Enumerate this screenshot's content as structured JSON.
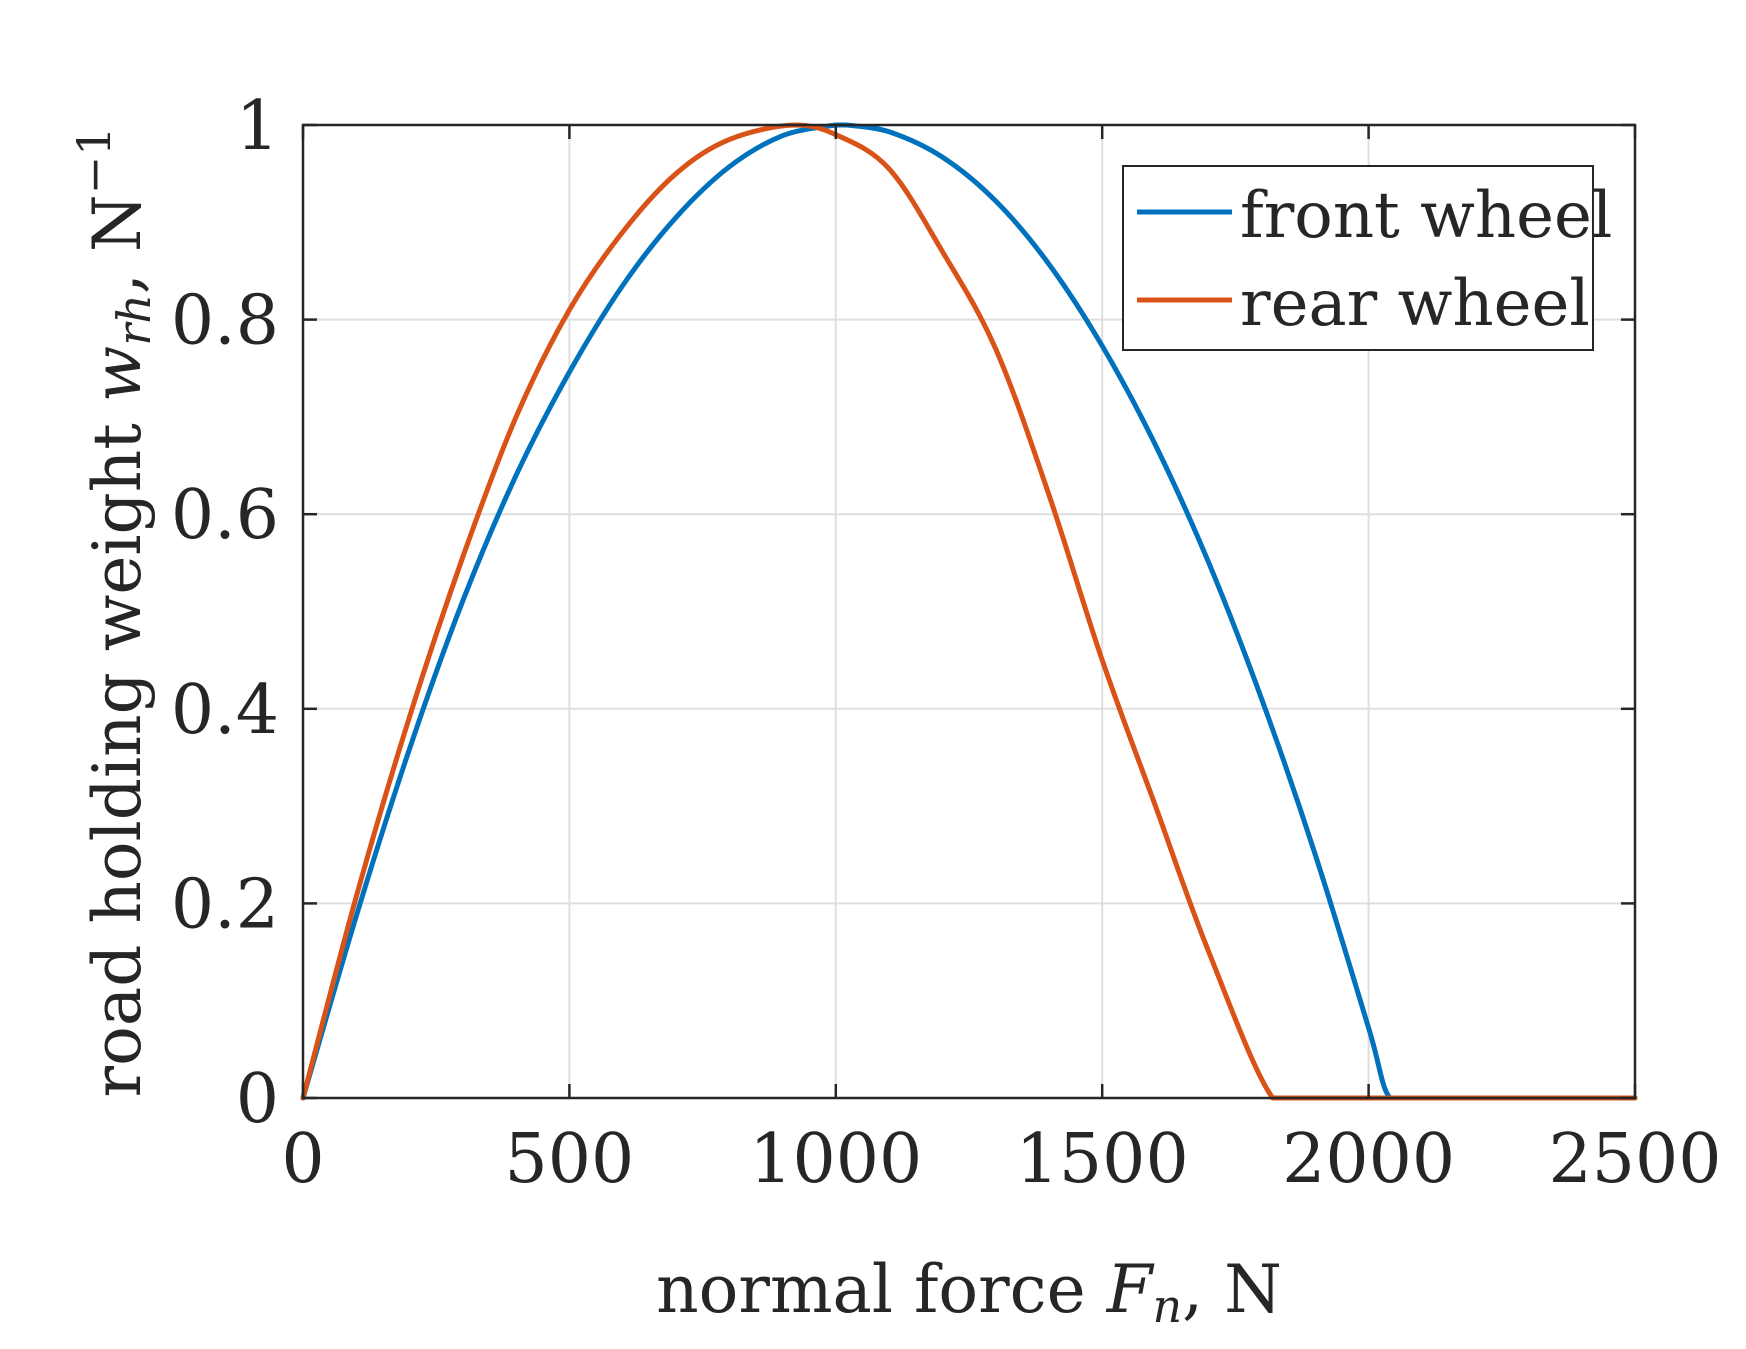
{
  "chart_data": {
    "type": "line",
    "xlabel_main": "normal force ",
    "xlabel_var": "F",
    "xlabel_sub": "n",
    "xlabel_unit": ", N",
    "ylabel_main": "road holding weight ",
    "ylabel_var": "w",
    "ylabel_sub": "rh",
    "ylabel_unit": ", N",
    "ylabel_sup": "−1",
    "xlim": [
      0,
      2500
    ],
    "ylim": [
      0,
      1
    ],
    "xticks": [
      0,
      500,
      1000,
      1500,
      2000,
      2500
    ],
    "xtick_labels": [
      "0",
      "500",
      "1000",
      "1500",
      "2000",
      "2500"
    ],
    "yticks": [
      0,
      0.2,
      0.4,
      0.6,
      0.8,
      1
    ],
    "ytick_labels": [
      "0",
      "0.2",
      "0.4",
      "0.6",
      "0.8",
      "1"
    ],
    "grid": true,
    "legend_position": "top-right",
    "series": [
      {
        "name": "front wheel",
        "color": "#0072BD",
        "x": [
          0,
          100,
          200,
          300,
          400,
          500,
          600,
          700,
          800,
          900,
          1000,
          1020,
          1100,
          1200,
          1300,
          1400,
          1500,
          1600,
          1700,
          1800,
          1900,
          2000,
          2040,
          2100,
          2200,
          2300,
          2400,
          2500
        ],
        "y": [
          0,
          0.187,
          0.359,
          0.511,
          0.64,
          0.746,
          0.835,
          0.905,
          0.957,
          0.989,
          1.0,
          1.0,
          0.993,
          0.967,
          0.922,
          0.857,
          0.773,
          0.671,
          0.55,
          0.409,
          0.25,
          0.072,
          0,
          0,
          0,
          0,
          0,
          0
        ]
      },
      {
        "name": "rear wheel",
        "color": "#D95319",
        "x": [
          0,
          100,
          200,
          300,
          400,
          500,
          600,
          700,
          800,
          920,
          1000,
          1100,
          1200,
          1300,
          1400,
          1500,
          1600,
          1700,
          1820,
          1900,
          2000,
          2100,
          2200,
          2300,
          2400,
          2500
        ],
        "y": [
          0,
          0.207,
          0.392,
          0.556,
          0.7,
          0.81,
          0.89,
          0.95,
          0.985,
          1.0,
          0.99,
          0.955,
          0.87,
          0.77,
          0.62,
          0.45,
          0.3,
          0.15,
          0,
          0,
          0,
          0,
          0,
          0,
          0,
          0
        ]
      }
    ]
  }
}
